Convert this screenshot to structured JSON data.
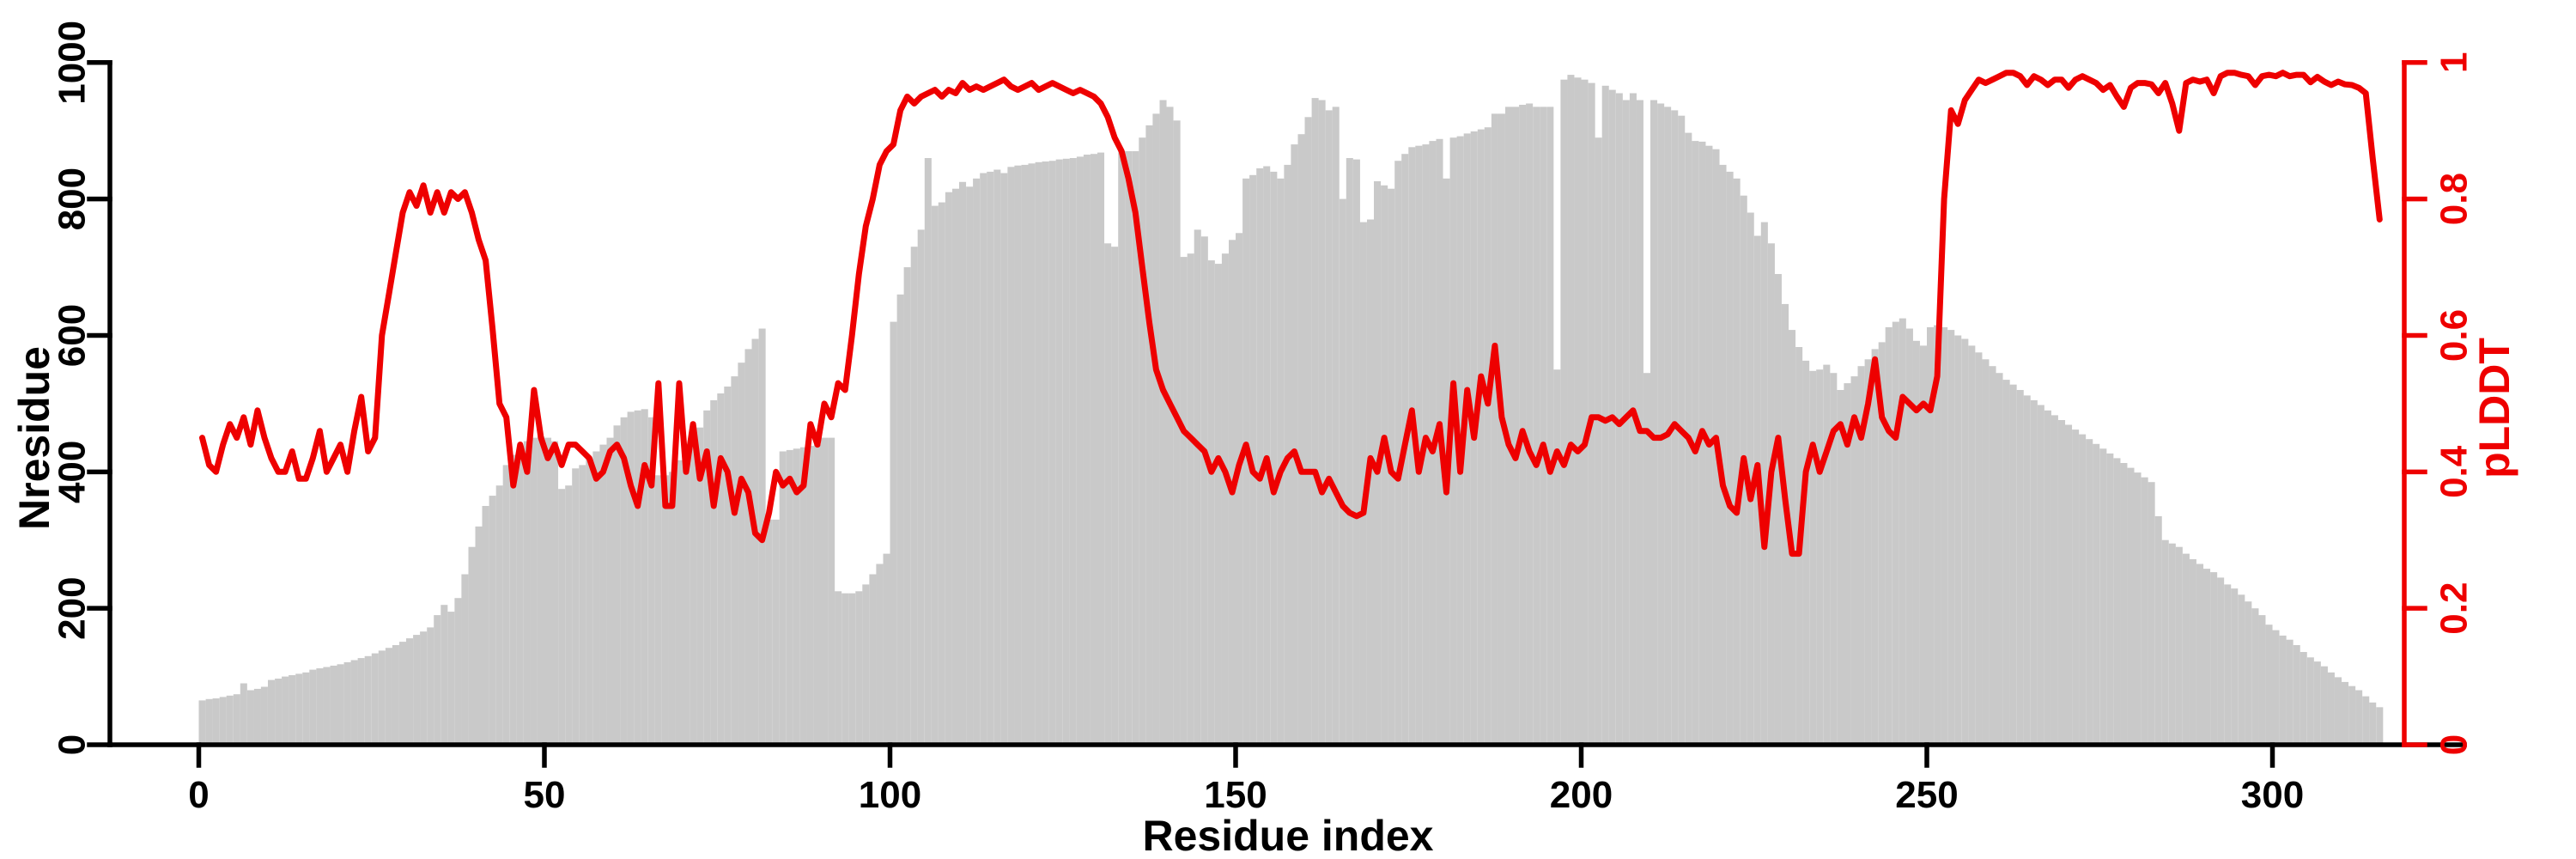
{
  "colors": {
    "bar_fill": "#c9c9c9",
    "line_color": "#ee0000",
    "axis_color": "#000000",
    "background": "#ffffff"
  },
  "chart_data": {
    "type": "composite",
    "subtype": "histogram-bars-plus-line-dual-axis",
    "title": "",
    "xlabel": "Residue index",
    "ylabel_left": "Nresidue",
    "ylabel_right": "pLDDT",
    "x_ticks": [
      0,
      50,
      100,
      150,
      200,
      250,
      300
    ],
    "x_tick_labels": [
      "0",
      "50",
      "100",
      "150",
      "200",
      "250",
      "300"
    ],
    "y_left_ticks": [
      0,
      200,
      400,
      600,
      800,
      1000
    ],
    "y_left_tick_labels": [
      "0",
      "200",
      "400",
      "600",
      "800",
      "1000"
    ],
    "y_left_range": [
      0,
      1000
    ],
    "y_right_ticks": [
      0,
      0.2,
      0.4,
      0.6,
      0.8,
      1
    ],
    "y_right_tick_labels": [
      "0",
      "0.2",
      "0.4",
      "0.6",
      "0.8",
      "1"
    ],
    "y_right_range": [
      0,
      1
    ],
    "x_range_shown": [
      0,
      315
    ],
    "grid": false,
    "legend": "none",
    "series": [
      {
        "name": "Nresidue",
        "type": "bar",
        "axis": "left",
        "values": [
          65,
          67,
          68,
          70,
          72,
          74,
          90,
          80,
          82,
          85,
          95,
          97,
          100,
          102,
          104,
          106,
          110,
          112,
          114,
          116,
          118,
          121,
          124,
          127,
          130,
          134,
          138,
          142,
          146,
          151,
          156,
          161,
          166,
          172,
          190,
          205,
          195,
          215,
          250,
          290,
          320,
          350,
          365,
          380,
          410,
          425,
          435,
          445,
          450,
          452,
          450,
          445,
          375,
          380,
          405,
          410,
          420,
          430,
          440,
          450,
          468,
          480,
          488,
          490,
          492,
          480,
          395,
          395,
          400,
          417,
          437,
          450,
          465,
          490,
          505,
          515,
          525,
          540,
          560,
          580,
          595,
          610,
          330,
          330,
          430,
          432,
          434,
          436,
          438,
          440,
          450,
          450,
          225,
          222,
          222,
          225,
          235,
          250,
          265,
          280,
          620,
          660,
          700,
          730,
          755,
          860,
          790,
          795,
          810,
          815,
          825,
          818,
          830,
          838,
          840,
          843,
          838,
          847,
          849,
          850,
          852,
          854,
          855,
          856,
          858,
          859,
          860,
          862,
          865,
          866,
          868,
          735,
          730,
          870,
          870,
          870,
          890,
          908,
          925,
          945,
          935,
          915,
          715,
          720,
          755,
          745,
          710,
          705,
          720,
          740,
          750,
          830,
          835,
          845,
          848,
          840,
          830,
          850,
          880,
          895,
          920,
          948,
          945,
          930,
          935,
          800,
          860,
          858,
          766,
          770,
          826,
          820,
          815,
          856,
          866,
          876,
          878,
          880,
          885,
          888,
          830,
          890,
          892,
          896,
          899,
          902,
          905,
          925,
          925,
          935,
          935,
          938,
          940,
          935,
          935,
          935,
          550,
          975,
          982,
          978,
          975,
          970,
          890,
          966,
          960,
          955,
          945,
          955,
          945,
          545,
          945,
          940,
          935,
          930,
          922,
          897,
          885,
          884,
          878,
          873,
          850,
          840,
          830,
          805,
          780,
          746,
          766,
          735,
          690,
          646,
          608,
          583,
          563,
          548,
          550,
          557,
          545,
          520,
          530,
          540,
          555,
          565,
          580,
          590,
          612,
          620,
          625,
          610,
          592,
          585,
          612,
          615,
          612,
          608,
          600,
          595,
          585,
          575,
          565,
          555,
          545,
          535,
          528,
          520,
          512,
          505,
          498,
          490,
          483,
          476,
          469,
          462,
          455,
          448,
          441,
          434,
          427,
          420,
          413,
          406,
          399,
          392,
          385,
          335,
          300,
          295,
          290,
          280,
          272,
          265,
          258,
          253,
          245,
          235,
          229,
          220,
          210,
          200,
          190,
          176,
          168,
          160,
          154,
          146,
          136,
          128,
          122,
          115,
          106,
          99,
          92,
          86,
          80,
          71,
          62,
          55
        ]
      },
      {
        "name": "pLDDT",
        "type": "line",
        "axis": "right",
        "values": [
          0.45,
          0.41,
          0.4,
          0.44,
          0.47,
          0.45,
          0.48,
          0.44,
          0.49,
          0.45,
          0.42,
          0.4,
          0.4,
          0.43,
          0.39,
          0.39,
          0.42,
          0.46,
          0.4,
          0.42,
          0.44,
          0.4,
          0.46,
          0.51,
          0.43,
          0.45,
          0.6,
          0.66,
          0.72,
          0.78,
          0.81,
          0.79,
          0.82,
          0.78,
          0.81,
          0.78,
          0.81,
          0.8,
          0.81,
          0.78,
          0.74,
          0.71,
          0.61,
          0.5,
          0.48,
          0.38,
          0.44,
          0.4,
          0.52,
          0.45,
          0.42,
          0.44,
          0.41,
          0.44,
          0.44,
          0.43,
          0.42,
          0.39,
          0.4,
          0.43,
          0.44,
          0.42,
          0.38,
          0.35,
          0.41,
          0.38,
          0.53,
          0.35,
          0.35,
          0.53,
          0.4,
          0.47,
          0.39,
          0.43,
          0.35,
          0.42,
          0.4,
          0.34,
          0.39,
          0.37,
          0.31,
          0.3,
          0.34,
          0.4,
          0.38,
          0.39,
          0.37,
          0.38,
          0.47,
          0.44,
          0.5,
          0.48,
          0.53,
          0.52,
          0.6,
          0.69,
          0.76,
          0.8,
          0.85,
          0.87,
          0.88,
          0.93,
          0.95,
          0.94,
          0.95,
          0.955,
          0.96,
          0.95,
          0.96,
          0.955,
          0.97,
          0.96,
          0.965,
          0.96,
          0.965,
          0.97,
          0.975,
          0.965,
          0.96,
          0.965,
          0.97,
          0.96,
          0.965,
          0.97,
          0.965,
          0.96,
          0.955,
          0.96,
          0.955,
          0.95,
          0.94,
          0.92,
          0.89,
          0.87,
          0.83,
          0.78,
          0.7,
          0.62,
          0.55,
          0.52,
          0.5,
          0.48,
          0.46,
          0.45,
          0.44,
          0.43,
          0.4,
          0.42,
          0.4,
          0.37,
          0.41,
          0.44,
          0.4,
          0.39,
          0.42,
          0.37,
          0.4,
          0.42,
          0.43,
          0.4,
          0.4,
          0.4,
          0.37,
          0.39,
          0.37,
          0.35,
          0.34,
          0.335,
          0.34,
          0.42,
          0.4,
          0.45,
          0.4,
          0.39,
          0.44,
          0.49,
          0.4,
          0.45,
          0.43,
          0.47,
          0.37,
          0.53,
          0.4,
          0.52,
          0.45,
          0.54,
          0.5,
          0.585,
          0.48,
          0.44,
          0.42,
          0.46,
          0.43,
          0.41,
          0.44,
          0.4,
          0.43,
          0.41,
          0.44,
          0.43,
          0.44,
          0.48,
          0.48,
          0.475,
          0.48,
          0.47,
          0.48,
          0.49,
          0.46,
          0.46,
          0.45,
          0.45,
          0.455,
          0.47,
          0.46,
          0.45,
          0.43,
          0.46,
          0.44,
          0.45,
          0.38,
          0.35,
          0.34,
          0.42,
          0.36,
          0.41,
          0.29,
          0.4,
          0.45,
          0.36,
          0.28,
          0.28,
          0.4,
          0.44,
          0.4,
          0.43,
          0.46,
          0.47,
          0.44,
          0.48,
          0.45,
          0.5,
          0.565,
          0.48,
          0.46,
          0.45,
          0.51,
          0.5,
          0.49,
          0.5,
          0.49,
          0.54,
          0.8,
          0.93,
          0.91,
          0.945,
          0.96,
          0.975,
          0.97,
          0.975,
          0.98,
          0.985,
          0.985,
          0.98,
          0.967,
          0.98,
          0.975,
          0.967,
          0.975,
          0.975,
          0.963,
          0.975,
          0.98,
          0.975,
          0.97,
          0.96,
          0.967,
          0.95,
          0.935,
          0.963,
          0.97,
          0.97,
          0.968,
          0.955,
          0.97,
          0.94,
          0.9,
          0.97,
          0.975,
          0.972,
          0.975,
          0.955,
          0.98,
          0.985,
          0.985,
          0.982,
          0.98,
          0.967,
          0.98,
          0.982,
          0.98,
          0.985,
          0.98,
          0.982,
          0.982,
          0.971,
          0.979,
          0.972,
          0.967,
          0.972,
          0.968,
          0.967,
          0.963,
          0.955,
          0.86,
          0.77
        ]
      }
    ]
  }
}
